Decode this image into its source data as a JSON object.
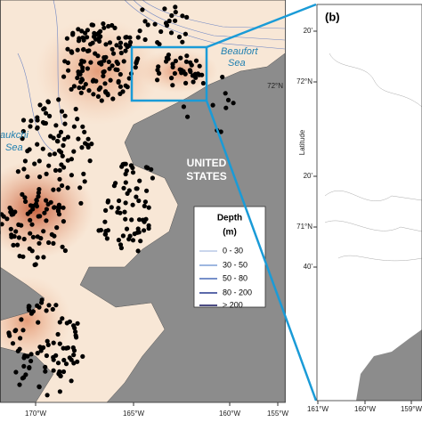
{
  "map": {
    "place_labels": {
      "beaufort_1": "Beaufort",
      "beaufort_2": "Sea",
      "chukchi_1": "aukchi",
      "chukchi_2": "Sea",
      "us_1": "UNITED",
      "us_2": "STATES"
    },
    "legend": {
      "title": "Depth",
      "unit": "(m)",
      "items": [
        {
          "label": "0 - 30",
          "color": "#b9c9e6"
        },
        {
          "label": "30 - 50",
          "color": "#7f9fd6"
        },
        {
          "label": "50 - 80",
          "color": "#4a6bb8"
        },
        {
          "label": "80 - 200",
          "color": "#26388e"
        },
        {
          "label": "> 200",
          "color": "#10105a"
        }
      ]
    },
    "main_axis": {
      "x_labels": [
        "170°W",
        "165°W",
        "160°W",
        "155°W"
      ],
      "y_labels": [
        "72°N"
      ]
    },
    "inset": {
      "label": "(b)",
      "y_title": "Latitude",
      "x_labels": [
        "161°W",
        "160°W",
        "159°W"
      ],
      "y_labels": [
        "20'",
        "72°N",
        "20'",
        "71°N",
        "40'"
      ]
    }
  }
}
